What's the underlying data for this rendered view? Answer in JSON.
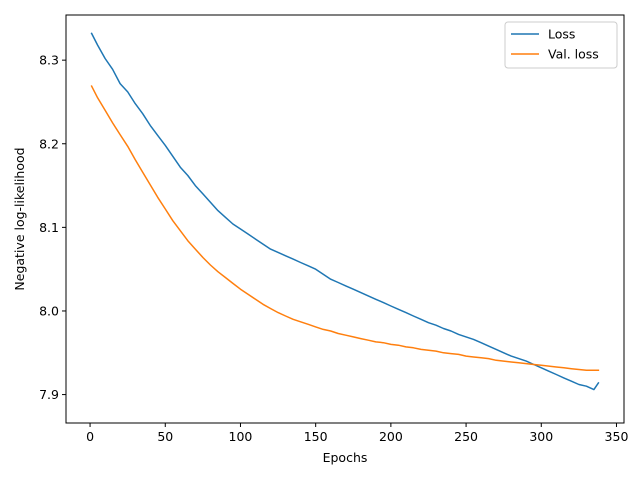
{
  "chart_data": {
    "type": "line",
    "title": "",
    "xlabel": "Epochs",
    "ylabel": "Negative log-likelihood",
    "xlim": [
      -16,
      355
    ],
    "ylim": [
      7.866,
      8.354
    ],
    "xticks": [
      0,
      50,
      100,
      150,
      200,
      250,
      300,
      350
    ],
    "yticks": [
      7.9,
      8.0,
      8.1,
      8.2,
      8.3
    ],
    "ytick_labels": [
      "7.9",
      "8.0",
      "8.1",
      "8.2",
      "8.3"
    ],
    "grid": false,
    "legend_position": "top-right",
    "series": [
      {
        "name": "Loss",
        "color": "#1f77b4",
        "x": [
          1,
          5,
          10,
          15,
          20,
          25,
          30,
          35,
          40,
          45,
          50,
          55,
          60,
          65,
          70,
          75,
          80,
          85,
          90,
          95,
          100,
          105,
          110,
          115,
          120,
          125,
          130,
          135,
          140,
          145,
          150,
          155,
          160,
          165,
          170,
          175,
          180,
          185,
          190,
          195,
          200,
          205,
          210,
          215,
          220,
          225,
          230,
          235,
          240,
          245,
          250,
          255,
          260,
          265,
          270,
          275,
          280,
          285,
          290,
          295,
          300,
          305,
          310,
          315,
          320,
          325,
          330,
          335,
          338
        ],
        "values": [
          8.332,
          8.318,
          8.302,
          8.289,
          8.272,
          8.262,
          8.248,
          8.236,
          8.222,
          8.21,
          8.198,
          8.185,
          8.172,
          8.162,
          8.15,
          8.14,
          8.13,
          8.12,
          8.112,
          8.104,
          8.098,
          8.092,
          8.086,
          8.08,
          8.074,
          8.07,
          8.066,
          8.062,
          8.058,
          8.054,
          8.05,
          8.044,
          8.038,
          8.034,
          8.03,
          8.026,
          8.022,
          8.018,
          8.014,
          8.01,
          8.006,
          8.002,
          7.998,
          7.994,
          7.99,
          7.986,
          7.983,
          7.979,
          7.976,
          7.972,
          7.969,
          7.966,
          7.962,
          7.958,
          7.954,
          7.95,
          7.946,
          7.943,
          7.94,
          7.936,
          7.932,
          7.928,
          7.924,
          7.92,
          7.916,
          7.912,
          7.91,
          7.906,
          7.914
        ]
      },
      {
        "name": "Val. loss",
        "color": "#ff7f0e",
        "x": [
          1,
          5,
          10,
          15,
          20,
          25,
          30,
          35,
          40,
          45,
          50,
          55,
          60,
          65,
          70,
          75,
          80,
          85,
          90,
          95,
          100,
          105,
          110,
          115,
          120,
          125,
          130,
          135,
          140,
          145,
          150,
          155,
          160,
          165,
          170,
          175,
          180,
          185,
          190,
          195,
          200,
          205,
          210,
          215,
          220,
          225,
          230,
          235,
          240,
          245,
          250,
          255,
          260,
          265,
          270,
          275,
          280,
          285,
          290,
          295,
          300,
          305,
          310,
          315,
          320,
          325,
          330,
          335,
          338
        ],
        "values": [
          8.269,
          8.255,
          8.24,
          8.225,
          8.211,
          8.197,
          8.181,
          8.166,
          8.151,
          8.136,
          8.122,
          8.108,
          8.096,
          8.084,
          8.074,
          8.064,
          8.055,
          8.047,
          8.04,
          8.033,
          8.026,
          8.02,
          8.014,
          8.008,
          8.003,
          7.998,
          7.994,
          7.99,
          7.987,
          7.984,
          7.981,
          7.978,
          7.976,
          7.973,
          7.971,
          7.969,
          7.967,
          7.965,
          7.963,
          7.962,
          7.96,
          7.959,
          7.957,
          7.956,
          7.954,
          7.953,
          7.952,
          7.95,
          7.949,
          7.948,
          7.946,
          7.945,
          7.944,
          7.943,
          7.941,
          7.94,
          7.939,
          7.938,
          7.937,
          7.936,
          7.935,
          7.934,
          7.933,
          7.932,
          7.931,
          7.93,
          7.929,
          7.929,
          7.929
        ]
      }
    ]
  }
}
